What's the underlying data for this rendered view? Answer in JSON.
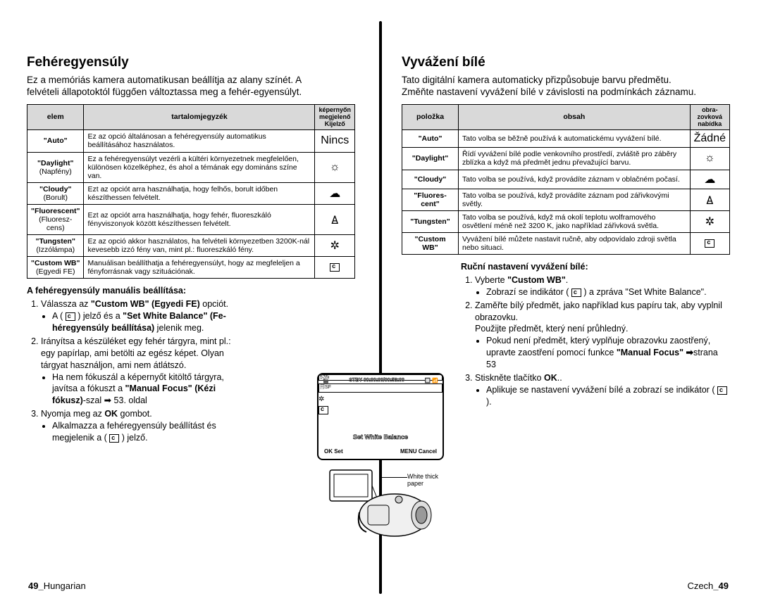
{
  "left": {
    "title": "Fehéregyensúly",
    "intro1": "Ez a memóriás kamera automatikusan beállítja az alany színét. A",
    "intro2": "felvételi állapotoktól függően változtassa meg a fehér-egyensúlyt.",
    "headers": [
      "elem",
      "tartalomjegyzék",
      "képernyőn megjelenő Kijelző"
    ],
    "rows": [
      {
        "c0": "<b>\"Auto\"</b>",
        "c1": "Ez az opció általánosan a fehéregyensúly automatikus beállításához használatos.",
        "c2": "Nincs",
        "icon": ""
      },
      {
        "c0": "<b>\"Daylight\"</b><br>(Napfény)",
        "c1": "Ez a fehéregyensúlyt vezérli a kültéri környezetnek megfelelően, különösen közelképhez, és ahol a témának egy domináns színe van.",
        "icon": "☼"
      },
      {
        "c0": "<b>\"Cloudy\"</b><br>(Borult)",
        "c1": "Ezt az opciót arra használhatja, hogy felhős, borult időben készíthessen felvételt.",
        "icon": "☁"
      },
      {
        "c0": "<b>\"Fluorescent\"</b><br>(Fluoresz-<br>cens)",
        "c1": "Ezt az opciót arra használhatja, hogy fehér, fluoreszkáló fényviszonyok között készíthessen felvételt.",
        "icon": "𖼜"
      },
      {
        "c0": "<b>\"Tungsten\"</b><br>(Izzólámpa)",
        "c1": "Ez az opció akkor használatos, ha felvételi környezetben 3200K-nál kevesebb izzó fény van, mint pl.: fluoreszkáló fény.",
        "icon": "✲"
      },
      {
        "c0": "<b>\"Custom WB\"</b><br>(Egyedi FE)",
        "c1": "Manuálisan beállíthatja a fehéregyensúlyt, hogy az megfeleljen a fényforrásnak vagy szituációnak.",
        "icon": "cwb"
      }
    ],
    "manual_title": "A fehéregyensúly manuális beállítása:",
    "steps": [
      "Válassza az <b>\"Custom WB\" (Egyedi FE)</b> opciót.",
      "Irányítsa a készüléket egy fehér tárgyra, mint pl.: egy papírlap, ami betölti az egész képet. Olyan tárgyat használjon, ami nem átlátszó.",
      "Nyomja meg az <b>OK</b> gombot."
    ],
    "sub1a": "A ( ",
    "sub1b": " ) jelző és a <b>\"Set White Balance\" (Fe-héregyensúly beállítása)</b> jelenik meg.",
    "sub2a": "Ha nem fókuszál a képernyőt kitöltő tárgyra, javítsa a fókuszt a <b>\"Manual  Focus\" (Kézi fókusz)</b>-szal ➡ 53. oldal",
    "sub3a": "Alkalmazza a fehéregyensúly beállítást és megjelenik a ( ",
    "sub3b": " ) jelző.",
    "footer_page": "49_",
    "footer_lang": "Hungarian"
  },
  "right": {
    "title": "Vyvážení bílé",
    "intro1": "Tato digitální kamera automaticky přizpůsobuje barvu předmětu.",
    "intro2": "Změňte nastavení vyvážení bílé v závislosti na podmínkách záznamu.",
    "headers": [
      "položka",
      "obsah",
      "obra-zovková nabídka"
    ],
    "rows": [
      {
        "c0": "<b>\"Auto\"</b>",
        "c1": "Tato volba se běžně používá k automatickému vyvážení bílé.",
        "c2": "Žádné",
        "icon": ""
      },
      {
        "c0": "<b>\"Daylight\"</b>",
        "c1": "Řídí vyvážení bílé podle venkovního prostředí, zvláště pro záběry zblízka a když má předmět jednu převažující barvu.",
        "icon": "☼"
      },
      {
        "c0": "<b>\"Cloudy\"</b>",
        "c1": "Tato volba se používá, když provádíte záznam v oblačném počasí.",
        "icon": "☁"
      },
      {
        "c0": "<b>\"Fluores-<br>cent\"</b>",
        "c1": "Tato volba se používá, když provádíte záznam pod zářivkovými světly.",
        "icon": "𖼜"
      },
      {
        "c0": "<b>\"Tungsten\"</b>",
        "c1": "Tato volba se používá, když má okolí teplotu wolframového osvětlení méně než 3200 K, jako například zářivková světla.",
        "icon": "✲"
      },
      {
        "c0": "<b>\"Custom<br>WB\"</b>",
        "c1": "Vyvážení bílé můžete nastavit ručně, aby odpovídalo zdroji světla nebo situaci.",
        "icon": "cwb"
      }
    ],
    "manual_title": "Ruční nastavení vyvážení bílé:",
    "steps": [
      "Vyberte <b>\"Custom WB\"</b>.",
      "Zaměřte bílý předmět, jako například kus papíru tak, aby vyplnil obrazovku.<br>Použijte předmět, který není průhledný.",
      "Stiskněte tlačítko <b>OK</b>.."
    ],
    "sub1a": "Zobrazí se indikátor ( ",
    "sub1b": " ) a zpráva \"Set White Balance\".",
    "sub2a": "Pokud není předmět, který vyplňuje obrazovku zaostřený, upravte zaostření pomocí funkce <b>\"Manual Focus\" ➡</b>strana 53",
    "sub3a": "Aplikuje se nastavení vyvážení bílé a zobrazí se indikátor ( ",
    "sub3b": " ).",
    "footer_lang": "Czech",
    "footer_page": "_49"
  },
  "figure": {
    "stby": "STBY 00:00:00/00:58:00",
    "swb": "Set White Balance",
    "ok": "OK Set",
    "menu": "MENU Cancel",
    "paper": "White thick paper"
  }
}
